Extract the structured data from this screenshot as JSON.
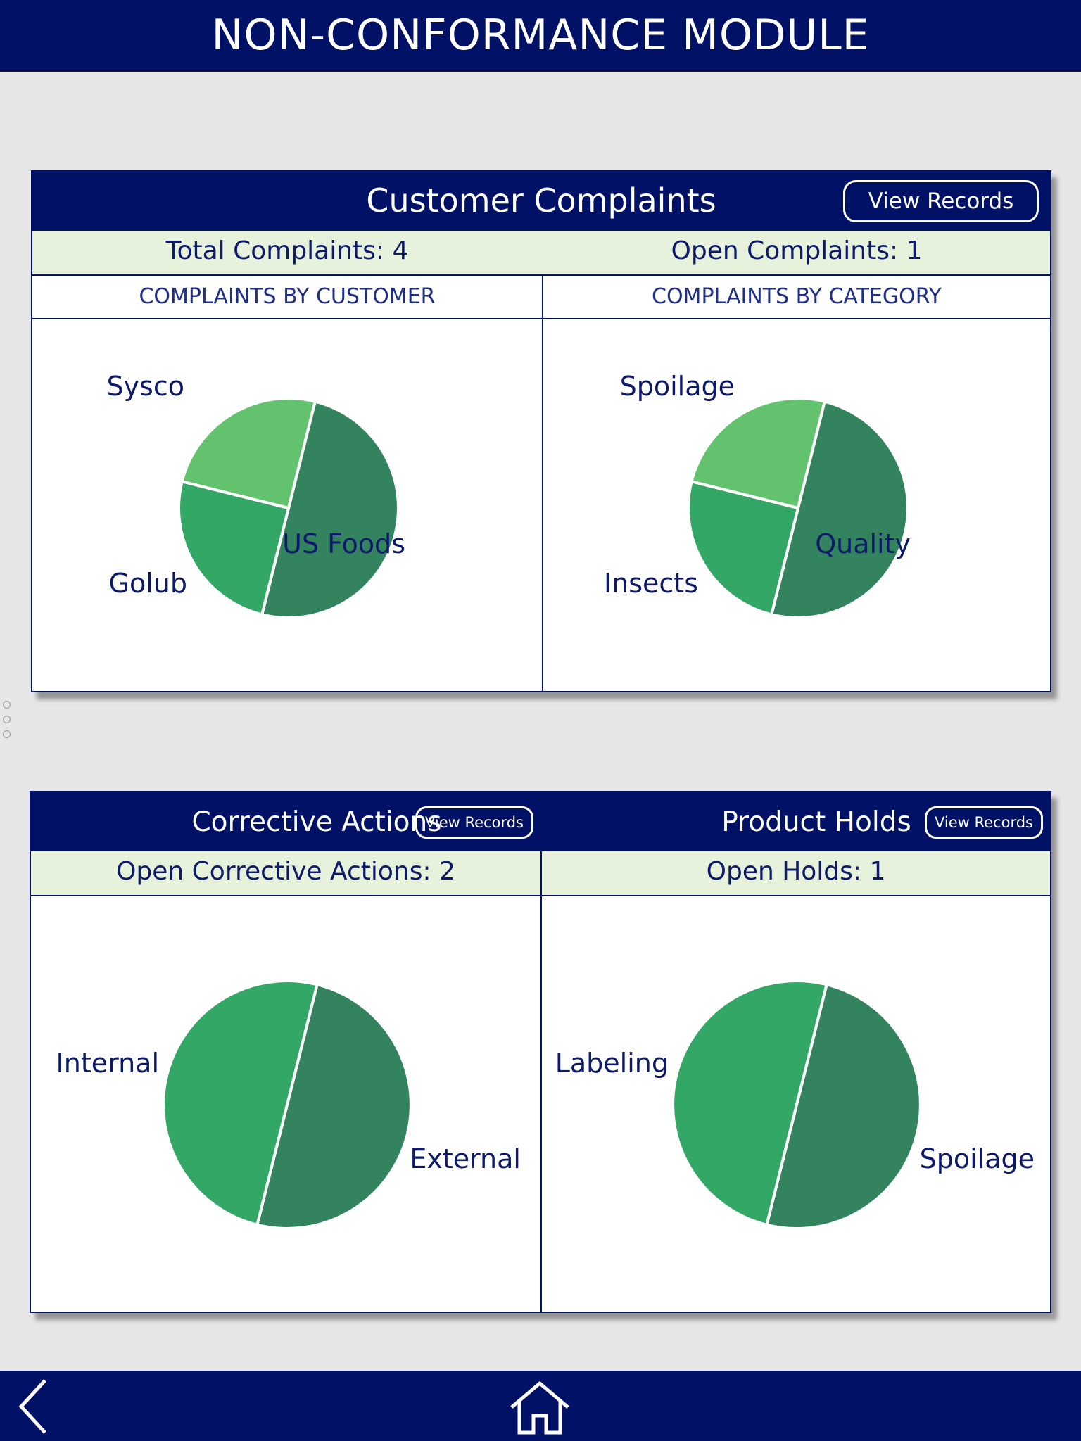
{
  "app": {
    "title": "NON-CONFORMANCE MODULE"
  },
  "complaints": {
    "title": "Customer Complaints",
    "view_records": "View Records",
    "total": "Total Complaints: 4",
    "open": "Open Complaints: 1",
    "by_customer_heading": "COMPLAINTS BY CUSTOMER",
    "by_category_heading": "COMPLAINTS BY CATEGORY"
  },
  "corrective": {
    "title": "Corrective Actions",
    "view_records": "View Records",
    "open": "Open Corrective Actions: 2"
  },
  "holds": {
    "title": "Product Holds",
    "view_records": "View Records",
    "open": "Open Holds: 1"
  },
  "colors": {
    "header": "#001166",
    "stats_bg": "#e6f2dc",
    "slice_dark": "#33845e",
    "slice_mid": "#33a866",
    "slice_light": "#62c26e"
  },
  "nav": {
    "back_icon": "chevron-left-icon",
    "home_icon": "home-icon"
  },
  "chart_data": [
    {
      "type": "pie",
      "title": "",
      "categories": [
        "US Foods",
        "Golub",
        "Sysco"
      ],
      "values": [
        2,
        1,
        1
      ]
    },
    {
      "type": "pie",
      "title": "",
      "categories": [
        "Quality",
        "Insects",
        "Spoilage"
      ],
      "values": [
        2,
        1,
        1
      ]
    },
    {
      "type": "pie",
      "title": "",
      "categories": [
        "External",
        "Internal"
      ],
      "values": [
        1,
        1
      ]
    },
    {
      "type": "pie",
      "title": "",
      "categories": [
        "Spoilage",
        "Labeling"
      ],
      "values": [
        1,
        1
      ]
    }
  ]
}
